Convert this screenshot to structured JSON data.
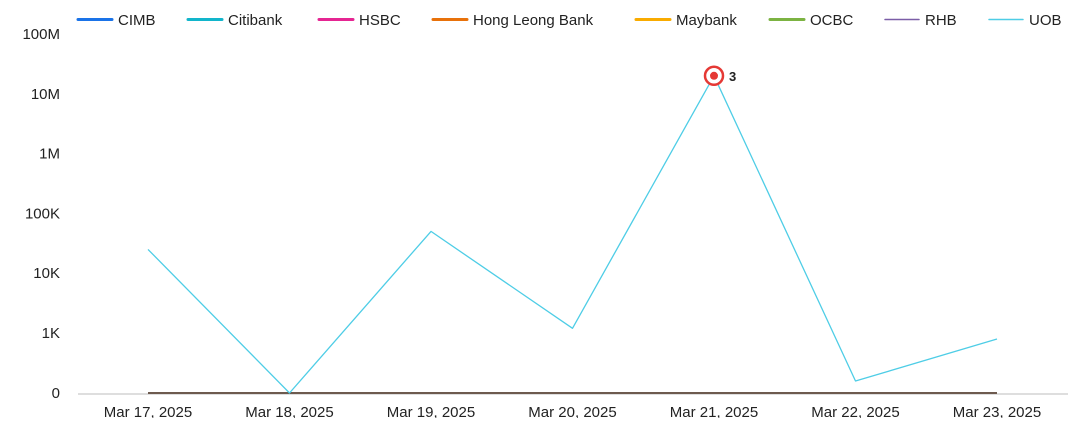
{
  "chart_data": {
    "type": "line",
    "title": "",
    "xlabel": "",
    "ylabel": "",
    "y_scale": "log",
    "y_ticks": [
      {
        "value": 0,
        "label": "0"
      },
      {
        "value": 1000,
        "label": "1K"
      },
      {
        "value": 10000,
        "label": "10K"
      },
      {
        "value": 100000,
        "label": "100K"
      },
      {
        "value": 1000000,
        "label": "1M"
      },
      {
        "value": 10000000,
        "label": "10M"
      },
      {
        "value": 100000000,
        "label": "100M"
      }
    ],
    "categories": [
      "Mar 17, 2025",
      "Mar 18, 2025",
      "Mar 19, 2025",
      "Mar 20, 2025",
      "Mar 21, 2025",
      "Mar 22, 2025",
      "Mar 23, 2025"
    ],
    "legend_position": "top",
    "grid": false,
    "series": [
      {
        "name": "CIMB",
        "color": "#1a73e8",
        "values": [
          0,
          0,
          0,
          0,
          0,
          0,
          0
        ]
      },
      {
        "name": "Citibank",
        "color": "#12b5cb",
        "values": [
          0,
          0,
          0,
          0,
          0,
          0,
          0
        ]
      },
      {
        "name": "HSBC",
        "color": "#e52592",
        "values": [
          0,
          0,
          0,
          0,
          0,
          0,
          0
        ]
      },
      {
        "name": "Hong Leong Bank",
        "color": "#e8710a",
        "values": [
          0,
          0,
          0,
          0,
          0,
          0,
          0
        ]
      },
      {
        "name": "Maybank",
        "color": "#f9ab00",
        "values": [
          0,
          0,
          0,
          0,
          0,
          0,
          0
        ]
      },
      {
        "name": "OCBC",
        "color": "#7cb342",
        "values": [
          0,
          0,
          0,
          0,
          0,
          0,
          0
        ]
      },
      {
        "name": "RHB",
        "color": "#7b5ea7",
        "values": [
          0,
          0,
          0,
          0,
          0,
          0,
          0
        ]
      },
      {
        "name": "UOB",
        "color": "#4ecde6",
        "values": [
          25000,
          0,
          50000,
          1200,
          20000000,
          200,
          900
        ]
      }
    ],
    "annotations": [
      {
        "series": "UOB",
        "category": "Mar 21, 2025",
        "label": "3",
        "marker_color": "#e53935"
      }
    ]
  }
}
